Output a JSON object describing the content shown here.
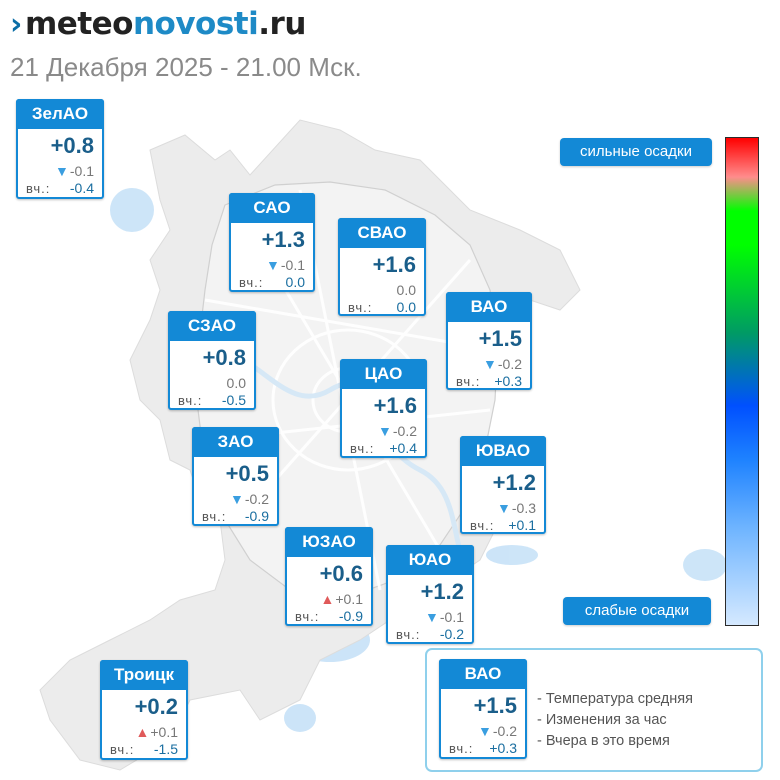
{
  "header": {
    "logo_mark": "›",
    "logo_part1": "meteo",
    "logo_part2": "novosti",
    "logo_part3": ".ru",
    "date": "21 Декабря 2025 - 21.00 Мск."
  },
  "labels": {
    "yesterday_prefix": "вч.:",
    "heavy": "сильные осадки",
    "light": "слабые осадки"
  },
  "colors": {
    "header_blue": "#1389d6",
    "trend_down": "#3a9ee0",
    "trend_up": "#e05a5a"
  },
  "districts": [
    {
      "name": "ЗелАО",
      "temp": "+0.8",
      "trend": "down",
      "change": "-0.1",
      "yesterday": "-0.4"
    },
    {
      "name": "САО",
      "temp": "+1.3",
      "trend": "down",
      "change": "-0.1",
      "yesterday": "0.0"
    },
    {
      "name": "СВАО",
      "temp": "+1.6",
      "trend": "none",
      "change": "0.0",
      "yesterday": "0.0"
    },
    {
      "name": "ВАО",
      "temp": "+1.5",
      "trend": "down",
      "change": "-0.2",
      "yesterday": "+0.3"
    },
    {
      "name": "СЗАО",
      "temp": "+0.8",
      "trend": "none",
      "change": "0.0",
      "yesterday": "-0.5"
    },
    {
      "name": "ЦАО",
      "temp": "+1.6",
      "trend": "down",
      "change": "-0.2",
      "yesterday": "+0.4"
    },
    {
      "name": "ЗАО",
      "temp": "+0.5",
      "trend": "down",
      "change": "-0.2",
      "yesterday": "-0.9"
    },
    {
      "name": "ЮВАО",
      "temp": "+1.2",
      "trend": "down",
      "change": "-0.3",
      "yesterday": "+0.1"
    },
    {
      "name": "ЮЗАО",
      "temp": "+0.6",
      "trend": "up",
      "change": "+0.1",
      "yesterday": "-0.9"
    },
    {
      "name": "ЮАО",
      "temp": "+1.2",
      "trend": "down",
      "change": "-0.1",
      "yesterday": "-0.2"
    },
    {
      "name": "Троицк",
      "temp": "+0.2",
      "trend": "up",
      "change": "+0.1",
      "yesterday": "-1.5"
    }
  ],
  "legend": {
    "sample": {
      "name": "ВАО",
      "temp": "+1.5",
      "trend": "down",
      "change": "-0.2",
      "yesterday": "+0.3"
    },
    "line1": "- Температура средняя",
    "line2": "- Изменения за час",
    "line3": "- Вчера в это время"
  }
}
